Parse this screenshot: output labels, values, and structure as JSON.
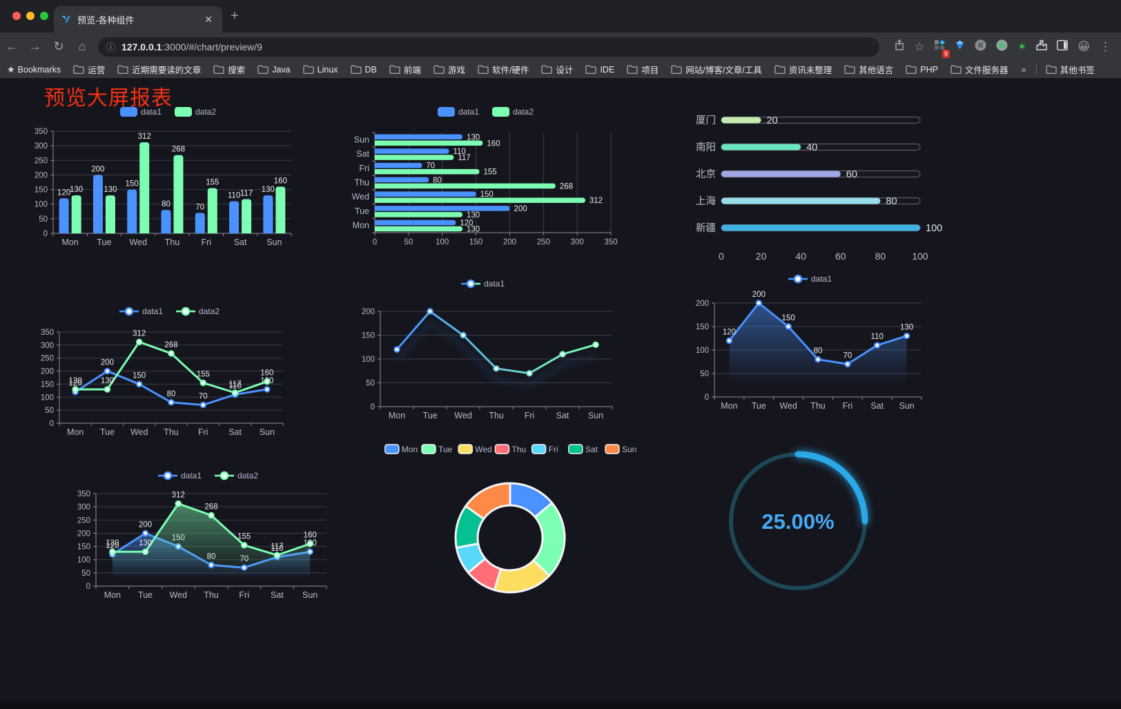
{
  "browser": {
    "tab_title": "预览-各种组件",
    "close_label": "✕",
    "newtab_label": "+",
    "url_host": "127.0.0.1",
    "url_rest": ":3000/#/chart/preview/9",
    "bookmarks_label": "Bookmarks",
    "bookmarks": [
      "运营",
      "近期需要读的文章",
      "搜索",
      "Java",
      "Linux",
      "DB",
      "前端",
      "游戏",
      "软件/硬件",
      "设计",
      "IDE",
      "项目",
      "网站/博客/文章/工具",
      "资讯未整理",
      "其他语言",
      "PHP",
      "文件服务器"
    ],
    "bookmarks_overflow": "»",
    "other_bookmarks": "其他书签",
    "extension_badge": "9"
  },
  "page": {
    "title": "预览大屏报表"
  },
  "theme": {
    "series_blue": "#4992ff",
    "series_green": "#7cffb2",
    "axis_label": "#b9b8ce",
    "grid_line": "#3c3c48",
    "axis_line": "#8e8e9c",
    "value_label": "#e8e8ec"
  },
  "chart_data": [
    {
      "id": "bar-vertical",
      "type": "bar",
      "categories": [
        "Mon",
        "Tue",
        "Wed",
        "Thu",
        "Fri",
        "Sat",
        "Sun"
      ],
      "series": [
        {
          "name": "data1",
          "color": "#4992ff",
          "values": [
            120,
            200,
            150,
            80,
            70,
            110,
            130
          ]
        },
        {
          "name": "data2",
          "color": "#7cffb2",
          "values": [
            130,
            130,
            312,
            268,
            155,
            117,
            160
          ]
        }
      ],
      "ylim": [
        0,
        350
      ],
      "ystep": 50,
      "grid": true,
      "legend_position": "top",
      "value_labels": true
    },
    {
      "id": "bar-horizontal",
      "type": "bar",
      "orientation": "horizontal",
      "categories": [
        "Mon",
        "Tue",
        "Wed",
        "Thu",
        "Fri",
        "Sat",
        "Sun"
      ],
      "display_top_to_bottom": [
        "Sun",
        "Sat",
        "Fri",
        "Thu",
        "Wed",
        "Tue",
        "Mon"
      ],
      "series": [
        {
          "name": "data1",
          "color": "#4992ff",
          "values": [
            120,
            200,
            150,
            80,
            70,
            110,
            130
          ]
        },
        {
          "name": "data2",
          "color": "#7cffb2",
          "values": [
            130,
            130,
            312,
            268,
            155,
            117,
            160
          ]
        }
      ],
      "xlim": [
        0,
        350
      ],
      "xstep": 50,
      "grid": true,
      "legend_position": "top",
      "value_labels": true
    },
    {
      "id": "progress-bars",
      "type": "bar",
      "orientation": "horizontal-progress",
      "categories": [
        "厦门",
        "南阳",
        "北京",
        "上海",
        "新疆"
      ],
      "values": [
        20,
        40,
        60,
        80,
        100
      ],
      "colors": [
        "#c4ebad",
        "#6be6c1",
        "#a0a7e6",
        "#96dee8",
        "#3fb1e3"
      ],
      "xlim": [
        0,
        100
      ],
      "xticks": [
        0,
        20,
        40,
        60,
        80,
        100
      ],
      "value_labels": true
    },
    {
      "id": "line-two-series",
      "type": "line",
      "categories": [
        "Mon",
        "Tue",
        "Wed",
        "Thu",
        "Fri",
        "Sat",
        "Sun"
      ],
      "series": [
        {
          "name": "data1",
          "color": "#4992ff",
          "values": [
            120,
            200,
            150,
            80,
            70,
            110,
            130
          ]
        },
        {
          "name": "data2",
          "color": "#7cffb2",
          "values": [
            130,
            130,
            312,
            268,
            155,
            117,
            160
          ]
        }
      ],
      "ylim": [
        0,
        350
      ],
      "ystep": 50,
      "grid": true,
      "legend_position": "top",
      "value_labels": true
    },
    {
      "id": "line-gradient",
      "type": "line",
      "categories": [
        "Mon",
        "Tue",
        "Wed",
        "Thu",
        "Fri",
        "Sat",
        "Sun"
      ],
      "series": [
        {
          "name": "data1",
          "color_start": "#4992ff",
          "color_end": "#7cffb2",
          "values": [
            120,
            200,
            150,
            80,
            70,
            110,
            130
          ]
        }
      ],
      "ylim": [
        0,
        200
      ],
      "ystep": 50,
      "grid": true,
      "legend_position": "top",
      "value_labels": false,
      "shadow": true
    },
    {
      "id": "line-area-blue",
      "type": "area",
      "categories": [
        "Mon",
        "Tue",
        "Wed",
        "Thu",
        "Fri",
        "Sat",
        "Sun"
      ],
      "series": [
        {
          "name": "data1",
          "color": "#4992ff",
          "values": [
            120,
            200,
            150,
            80,
            70,
            110,
            130
          ]
        }
      ],
      "ylim": [
        0,
        200
      ],
      "ystep": 50,
      "grid": true,
      "legend_position": "top",
      "value_labels": true
    },
    {
      "id": "line-area-two",
      "type": "area",
      "categories": [
        "Mon",
        "Tue",
        "Wed",
        "Thu",
        "Fri",
        "Sat",
        "Sun"
      ],
      "series": [
        {
          "name": "data1",
          "color": "#4992ff",
          "values": [
            120,
            200,
            150,
            80,
            70,
            110,
            130
          ]
        },
        {
          "name": "data2",
          "color": "#7cffb2",
          "values": [
            130,
            130,
            312,
            268,
            155,
            117,
            160
          ]
        }
      ],
      "ylim": [
        0,
        350
      ],
      "ystep": 50,
      "grid": true,
      "legend_position": "top",
      "value_labels": true
    },
    {
      "id": "donut",
      "type": "pie",
      "donut": true,
      "categories": [
        "Mon",
        "Tue",
        "Wed",
        "Thu",
        "Fri",
        "Sat",
        "Sun"
      ],
      "values": [
        120,
        200,
        150,
        80,
        70,
        110,
        130
      ],
      "colors": [
        "#4992ff",
        "#7cffb2",
        "#fddd60",
        "#ff6e76",
        "#58d9f9",
        "#05c091",
        "#ff8a45"
      ],
      "legend_position": "top"
    },
    {
      "id": "gauge",
      "type": "gauge",
      "value_text": "25.00%",
      "percent": 25,
      "progress_color": "#2aa8e8",
      "track_color": "#1d4756",
      "text_color": "#44abf2"
    }
  ]
}
